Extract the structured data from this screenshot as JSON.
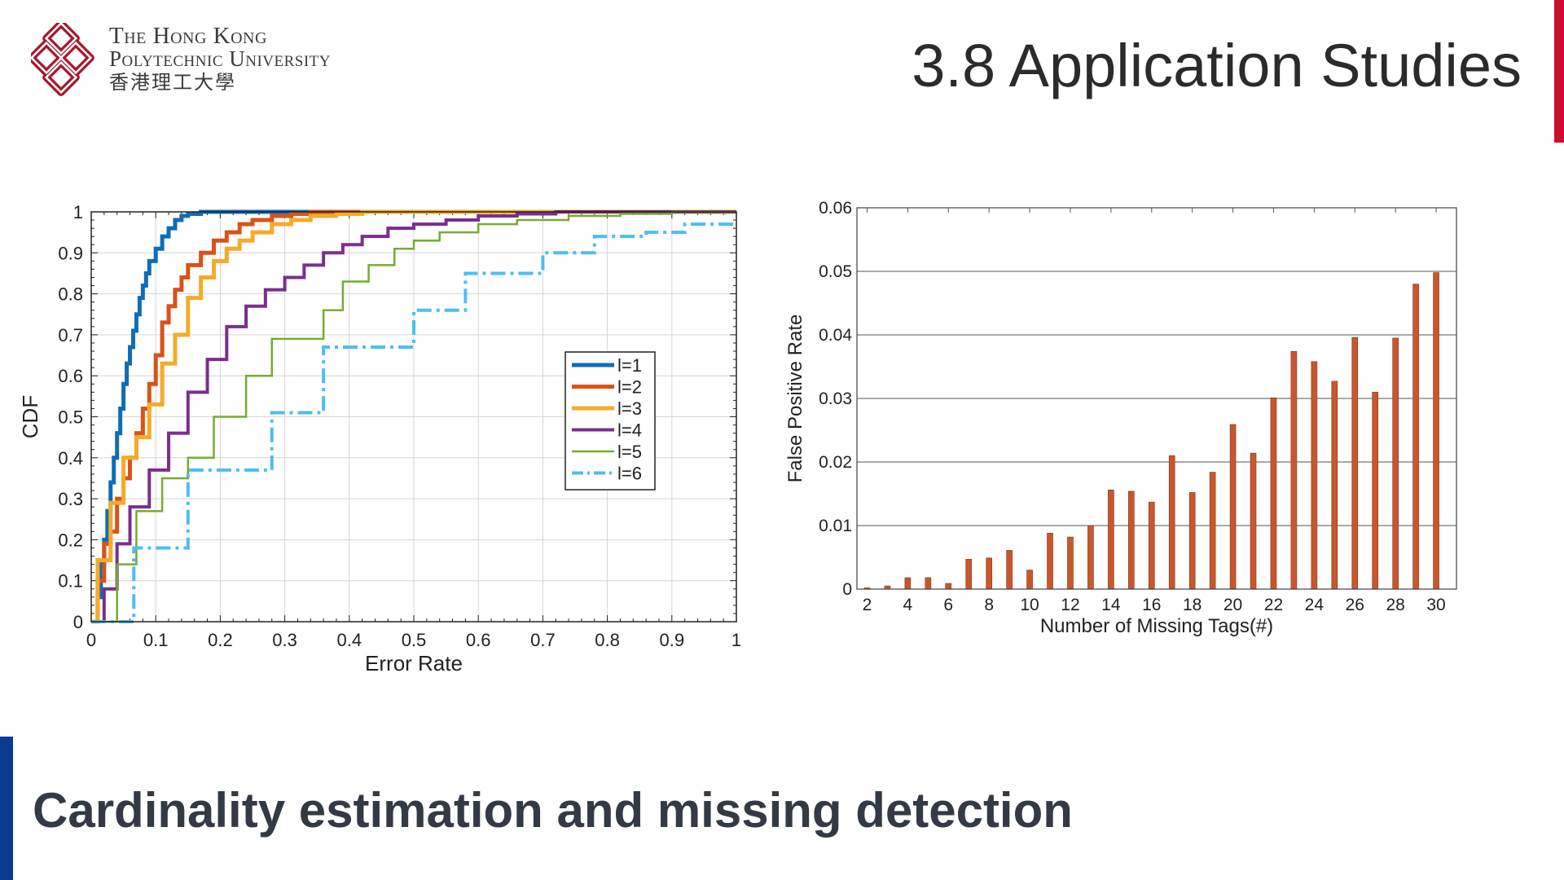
{
  "header": {
    "logo": {
      "line1": "The Hong Kong",
      "line2": "Polytechnic University",
      "line3": "香港理工大學"
    },
    "title": "3.8 Application Studies"
  },
  "footer": {
    "subtitle": "Cardinality estimation and missing detection"
  },
  "colors": {
    "accent_red": "#c8102e",
    "accent_blue": "#0b3b8f",
    "bar_fill": "#c9562c"
  },
  "chart_data": [
    {
      "type": "line",
      "title": "",
      "xlabel": "Error Rate",
      "ylabel": "CDF",
      "xlim": [
        0,
        1
      ],
      "ylim": [
        0,
        1
      ],
      "x_ticks": [
        "0",
        "0.1",
        "0.2",
        "0.3",
        "0.4",
        "0.5",
        "0.6",
        "0.7",
        "0.8",
        "0.9",
        "1"
      ],
      "y_ticks": [
        "0",
        "0.1",
        "0.2",
        "0.3",
        "0.4",
        "0.5",
        "0.6",
        "0.7",
        "0.8",
        "0.9",
        "1"
      ],
      "grid": true,
      "legend": "right",
      "series": [
        {
          "name": "l=1",
          "color": "#0f6db6",
          "dash": "solid",
          "width": 5,
          "x": [
            0,
            0.01,
            0.015,
            0.02,
            0.025,
            0.03,
            0.035,
            0.04,
            0.045,
            0.05,
            0.055,
            0.06,
            0.065,
            0.07,
            0.075,
            0.08,
            0.085,
            0.09,
            0.1,
            0.11,
            0.12,
            0.13,
            0.14,
            0.15,
            0.17
          ],
          "y": [
            0,
            0.06,
            0.14,
            0.2,
            0.27,
            0.34,
            0.4,
            0.46,
            0.52,
            0.58,
            0.63,
            0.67,
            0.71,
            0.75,
            0.79,
            0.82,
            0.85,
            0.88,
            0.91,
            0.94,
            0.96,
            0.98,
            0.99,
            0.995,
            1
          ]
        },
        {
          "name": "l=2",
          "color": "#d85319",
          "dash": "solid",
          "width": 5,
          "x": [
            0,
            0.01,
            0.02,
            0.03,
            0.04,
            0.05,
            0.06,
            0.07,
            0.08,
            0.09,
            0.1,
            0.11,
            0.12,
            0.13,
            0.14,
            0.15,
            0.17,
            0.19,
            0.21,
            0.23,
            0.25,
            0.28,
            0.31,
            0.34,
            0.37
          ],
          "y": [
            0,
            0.1,
            0.19,
            0.22,
            0.3,
            0.35,
            0.4,
            0.46,
            0.52,
            0.58,
            0.65,
            0.73,
            0.77,
            0.81,
            0.84,
            0.87,
            0.9,
            0.93,
            0.95,
            0.97,
            0.98,
            0.99,
            0.995,
            1,
            1
          ]
        },
        {
          "name": "l=3",
          "color": "#f5ab28",
          "dash": "solid",
          "width": 5,
          "x": [
            0,
            0.01,
            0.03,
            0.05,
            0.07,
            0.09,
            0.11,
            0.13,
            0.15,
            0.17,
            0.19,
            0.21,
            0.23,
            0.25,
            0.28,
            0.31,
            0.34,
            0.38,
            0.42,
            0.47,
            0.52,
            0.57
          ],
          "y": [
            0,
            0.15,
            0.29,
            0.4,
            0.45,
            0.53,
            0.63,
            0.7,
            0.79,
            0.84,
            0.88,
            0.91,
            0.93,
            0.95,
            0.97,
            0.98,
            0.99,
            0.995,
            1,
            1,
            1,
            1
          ]
        },
        {
          "name": "l=4",
          "color": "#7c2d8e",
          "dash": "solid",
          "width": 4,
          "x": [
            0,
            0.02,
            0.04,
            0.06,
            0.09,
            0.12,
            0.15,
            0.18,
            0.21,
            0.24,
            0.27,
            0.3,
            0.33,
            0.36,
            0.39,
            0.42,
            0.46,
            0.5,
            0.55,
            0.6,
            0.66,
            0.72,
            0.8
          ],
          "y": [
            0,
            0.08,
            0.19,
            0.28,
            0.37,
            0.46,
            0.56,
            0.64,
            0.72,
            0.77,
            0.81,
            0.84,
            0.87,
            0.9,
            0.92,
            0.94,
            0.96,
            0.97,
            0.98,
            0.99,
            0.995,
            1,
            1
          ]
        },
        {
          "name": "l=5",
          "color": "#77ac30",
          "dash": "solid",
          "width": 2.5,
          "x": [
            0,
            0.04,
            0.07,
            0.11,
            0.15,
            0.19,
            0.24,
            0.28,
            0.36,
            0.39,
            0.43,
            0.47,
            0.5,
            0.54,
            0.6,
            0.66,
            0.74,
            0.82,
            0.9,
            1
          ],
          "y": [
            0,
            0.14,
            0.27,
            0.35,
            0.4,
            0.5,
            0.6,
            0.69,
            0.76,
            0.83,
            0.87,
            0.91,
            0.93,
            0.95,
            0.97,
            0.98,
            0.99,
            0.995,
            1,
            1
          ]
        },
        {
          "name": "l=6",
          "color": "#4dbeee",
          "dash": "dashdot",
          "width": 4,
          "x": [
            0,
            0.066,
            0.15,
            0.28,
            0.36,
            0.5,
            0.58,
            0.7,
            0.78,
            0.86,
            0.92,
            1
          ],
          "y": [
            0,
            0.18,
            0.37,
            0.51,
            0.67,
            0.76,
            0.85,
            0.9,
            0.94,
            0.95,
            0.97,
            0.97
          ]
        }
      ]
    },
    {
      "type": "bar",
      "title": "",
      "xlabel": "Number of Missing Tags(#)",
      "ylabel": "False Positive Rate",
      "xlim": [
        2,
        31
      ],
      "ylim": [
        0,
        0.06
      ],
      "x_ticks": [
        "2",
        "4",
        "6",
        "8",
        "10",
        "12",
        "14",
        "16",
        "18",
        "20",
        "22",
        "24",
        "26",
        "28",
        "30"
      ],
      "y_ticks": [
        "0",
        "0.01",
        "0.02",
        "0.03",
        "0.04",
        "0.05",
        "0.06"
      ],
      "grid": true,
      "categories": [
        2,
        3,
        4,
        5,
        6,
        7,
        8,
        9,
        10,
        11,
        12,
        13,
        14,
        15,
        16,
        17,
        18,
        19,
        20,
        21,
        22,
        23,
        24,
        25,
        26,
        27,
        28,
        29,
        30
      ],
      "values": [
        0.0002,
        0.0005,
        0.0018,
        0.0018,
        0.0009,
        0.0047,
        0.0049,
        0.0061,
        0.003,
        0.0088,
        0.0082,
        0.01,
        0.0156,
        0.0154,
        0.0137,
        0.021,
        0.0152,
        0.0184,
        0.0259,
        0.0214,
        0.0301,
        0.0374,
        0.0358,
        0.0327,
        0.0396,
        0.031,
        0.0395,
        0.048,
        0.0498
      ]
    }
  ]
}
